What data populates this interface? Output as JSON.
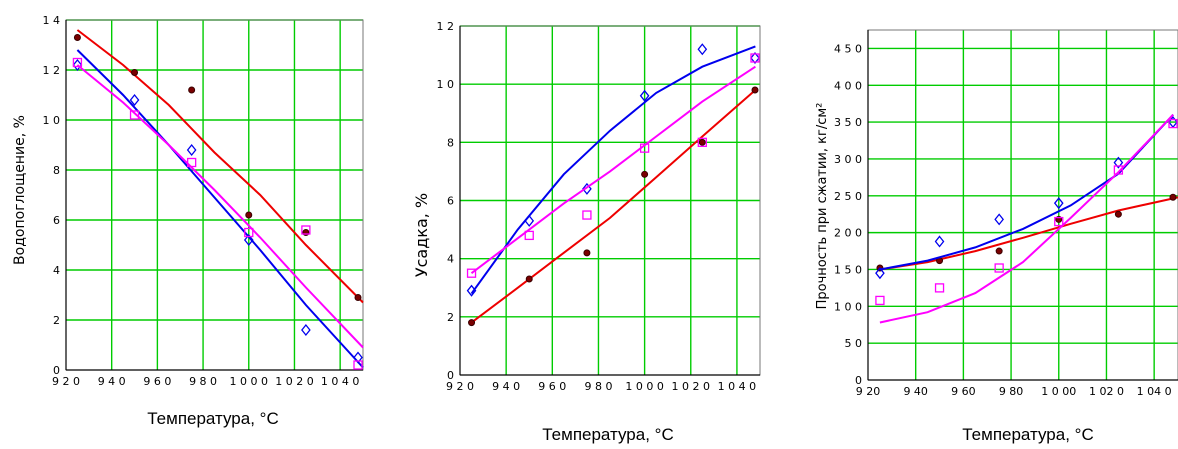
{
  "chart_data": [
    {
      "type": "line",
      "title": "",
      "xlabel": "Температура, °С",
      "ylabel": "Водопоглощение, %",
      "xlim": [
        920,
        1050
      ],
      "ylim": [
        0,
        14
      ],
      "xticks": [
        920,
        940,
        960,
        980,
        1000,
        1020,
        1040
      ],
      "xtick_labels": [
        "9 2 0",
        "9 4 0",
        "9 6 0",
        "9 8 0",
        "1 0 0 0",
        "1 0 2 0",
        "1 0 4 0"
      ],
      "yticks": [
        0,
        2,
        4,
        6,
        8,
        10,
        12,
        14
      ],
      "ytick_labels": [
        "0",
        "2",
        "4",
        "6",
        "8",
        "1 0",
        "1 2",
        "1 4"
      ],
      "grid": true,
      "grid_color": "#00cc00",
      "series": [
        {
          "color": "#ee0000",
          "marker": "dot",
          "points": [
            [
              925,
              13.3
            ],
            [
              950,
              11.9
            ],
            [
              975,
              11.2
            ],
            [
              1000,
              6.2
            ],
            [
              1025,
              5.5
            ],
            [
              1050,
              2.9
            ]
          ],
          "fit": [
            [
              925,
              13.6
            ],
            [
              945,
              12.2
            ],
            [
              965,
              10.6
            ],
            [
              985,
              8.7
            ],
            [
              1005,
              7.0
            ],
            [
              1025,
              5.0
            ],
            [
              1050,
              2.7
            ]
          ]
        },
        {
          "color": "#0000ee",
          "marker": "diamond",
          "points": [
            [
              925,
              12.2
            ],
            [
              950,
              10.8
            ],
            [
              975,
              8.8
            ],
            [
              1000,
              5.2
            ],
            [
              1025,
              1.6
            ],
            [
              1050,
              0.5
            ]
          ],
          "fit": [
            [
              925,
              12.8
            ],
            [
              945,
              11.0
            ],
            [
              965,
              9.0
            ],
            [
              985,
              6.9
            ],
            [
              1005,
              4.8
            ],
            [
              1025,
              2.6
            ],
            [
              1050,
              0.1
            ]
          ]
        },
        {
          "color": "#ff00ff",
          "marker": "square",
          "points": [
            [
              925,
              12.3
            ],
            [
              950,
              10.2
            ],
            [
              975,
              8.3
            ],
            [
              1000,
              5.5
            ],
            [
              1025,
              5.6
            ],
            [
              1050,
              0.2
            ]
          ],
          "fit": [
            [
              925,
              12.2
            ],
            [
              945,
              10.7
            ],
            [
              965,
              9.0
            ],
            [
              985,
              7.2
            ],
            [
              1005,
              5.3
            ],
            [
              1025,
              3.3
            ],
            [
              1050,
              0.9
            ]
          ]
        }
      ]
    },
    {
      "type": "line",
      "title": "",
      "xlabel": "Температура, °С",
      "ylabel": "Усадка, %",
      "xlim": [
        920,
        1050
      ],
      "ylim": [
        0,
        12
      ],
      "xticks": [
        920,
        940,
        960,
        980,
        1000,
        1020,
        1040
      ],
      "xtick_labels": [
        "9 2 0",
        "9 4 0",
        "9 6 0",
        "9 8 0",
        "1 0 0 0",
        "1 0 2 0",
        "1 0 4 0"
      ],
      "yticks": [
        0,
        2,
        4,
        6,
        8,
        10,
        12
      ],
      "ytick_labels": [
        "0",
        "2",
        "4",
        "6",
        "8",
        "1 0",
        "1 2"
      ],
      "grid": true,
      "grid_color": "#00cc00",
      "series": [
        {
          "color": "#ee0000",
          "marker": "dot",
          "points": [
            [
              925,
              1.8
            ],
            [
              950,
              3.3
            ],
            [
              975,
              4.2
            ],
            [
              1000,
              6.9
            ],
            [
              1025,
              8.0
            ],
            [
              1050,
              9.8
            ]
          ],
          "fit": [
            [
              925,
              1.8
            ],
            [
              945,
              3.0
            ],
            [
              965,
              4.2
            ],
            [
              985,
              5.4
            ],
            [
              1005,
              6.8
            ],
            [
              1025,
              8.2
            ],
            [
              1048,
              9.8
            ]
          ]
        },
        {
          "color": "#0000ee",
          "marker": "diamond",
          "points": [
            [
              925,
              2.9
            ],
            [
              950,
              5.3
            ],
            [
              975,
              6.4
            ],
            [
              1000,
              9.6
            ],
            [
              1025,
              11.2
            ],
            [
              1050,
              10.9
            ]
          ],
          "fit": [
            [
              925,
              2.8
            ],
            [
              945,
              5.0
            ],
            [
              965,
              6.9
            ],
            [
              985,
              8.4
            ],
            [
              1005,
              9.7
            ],
            [
              1025,
              10.6
            ],
            [
              1048,
              11.3
            ]
          ]
        },
        {
          "color": "#ff00ff",
          "marker": "square",
          "points": [
            [
              925,
              3.5
            ],
            [
              950,
              4.8
            ],
            [
              975,
              5.5
            ],
            [
              1000,
              7.8
            ],
            [
              1025,
              8.0
            ],
            [
              1050,
              10.9
            ]
          ],
          "fit": [
            [
              925,
              3.5
            ],
            [
              945,
              4.7
            ],
            [
              965,
              5.9
            ],
            [
              985,
              7.0
            ],
            [
              1005,
              8.2
            ],
            [
              1025,
              9.4
            ],
            [
              1048,
              10.6
            ]
          ]
        }
      ]
    },
    {
      "type": "line",
      "title": "",
      "xlabel": "Температура, °С",
      "ylabel": "Прочность при сжатии, кг/см²",
      "xlim": [
        920,
        1050
      ],
      "ylim": [
        0,
        475
      ],
      "xticks": [
        920,
        940,
        960,
        980,
        1000,
        1020,
        1040
      ],
      "xtick_labels": [
        "9 20",
        "9 40",
        "9 60",
        "9 80",
        "1 0 00",
        "1 02 0",
        "1 04 0"
      ],
      "yticks": [
        0,
        50,
        100,
        150,
        200,
        250,
        300,
        350,
        400,
        450
      ],
      "ytick_labels": [
        "0",
        "5 0",
        "1 0 0",
        "1 5 0",
        "2 0 0",
        "2 5 0",
        "3 0 0",
        "3 5 0",
        "4 0 0",
        "4 5 0"
      ],
      "grid": true,
      "grid_color": "#00cc00",
      "series": [
        {
          "color": "#ee0000",
          "marker": "dot",
          "points": [
            [
              925,
              152
            ],
            [
              950,
              162
            ],
            [
              975,
              175
            ],
            [
              1000,
              218
            ],
            [
              1025,
              225
            ],
            [
              1050,
              248
            ]
          ],
          "fit": [
            [
              925,
              150
            ],
            [
              945,
              160
            ],
            [
              965,
              175
            ],
            [
              985,
              193
            ],
            [
              1005,
              212
            ],
            [
              1025,
              230
            ],
            [
              1050,
              248
            ]
          ]
        },
        {
          "color": "#0000ee",
          "marker": "diamond",
          "points": [
            [
              925,
              145
            ],
            [
              950,
              188
            ],
            [
              975,
              218
            ],
            [
              1000,
              240
            ],
            [
              1025,
              295
            ],
            [
              1050,
              350
            ]
          ],
          "fit": [
            [
              925,
              150
            ],
            [
              945,
              162
            ],
            [
              965,
              180
            ],
            [
              985,
              205
            ],
            [
              1005,
              237
            ],
            [
              1025,
              280
            ],
            [
              1048,
              360
            ]
          ]
        },
        {
          "color": "#ff00ff",
          "marker": "square",
          "points": [
            [
              925,
              108
            ],
            [
              950,
              125
            ],
            [
              975,
              152
            ],
            [
              1000,
              215
            ],
            [
              1025,
              285
            ],
            [
              1050,
              348
            ]
          ],
          "fit": [
            [
              925,
              78
            ],
            [
              945,
              92
            ],
            [
              965,
              118
            ],
            [
              985,
              160
            ],
            [
              1005,
              220
            ],
            [
              1025,
              282
            ],
            [
              1048,
              360
            ]
          ]
        }
      ]
    }
  ]
}
